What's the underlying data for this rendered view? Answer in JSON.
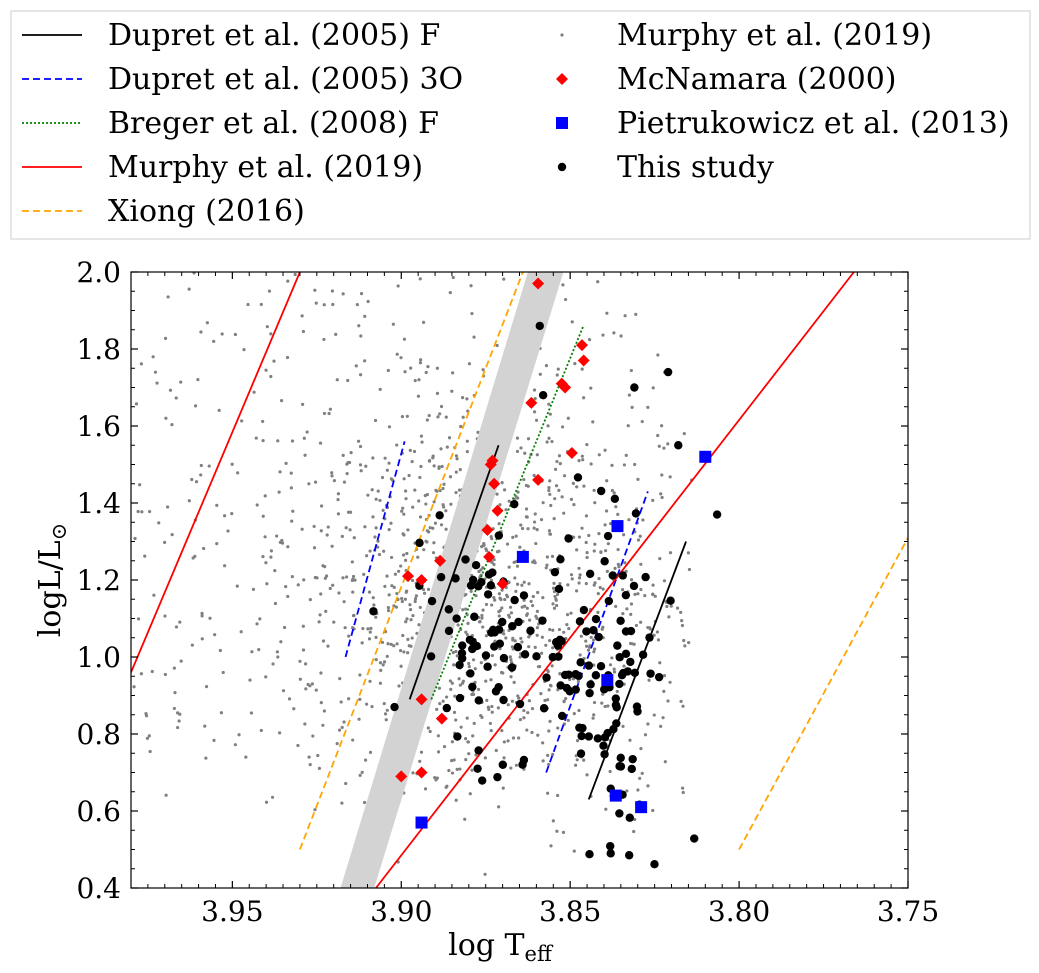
{
  "chart_data": {
    "type": "scatter",
    "title": "",
    "xlabel": "log T",
    "xlabel_sub": "eff",
    "ylabel": "logL/L",
    "ylabel_sub": "⊙",
    "xlim": [
      3.98,
      3.75
    ],
    "ylim": [
      0.4,
      2.0
    ],
    "x_ticks": [
      3.95,
      3.9,
      3.85,
      3.8,
      3.75
    ],
    "x_tick_labels": [
      "3.95",
      "3.90",
      "3.85",
      "3.80",
      "3.75"
    ],
    "y_ticks": [
      0.4,
      0.6,
      0.8,
      1.0,
      1.2,
      1.4,
      1.6,
      1.8,
      2.0
    ],
    "y_tick_labels": [
      "0.4",
      "0.6",
      "0.8",
      "1.0",
      "1.2",
      "1.4",
      "1.6",
      "1.8",
      "2.0"
    ],
    "legend_position": "top-outside",
    "instability_strip_band": {
      "color": "#d3d3d3",
      "polygon": [
        [
          3.918,
          0.4
        ],
        [
          3.908,
          0.4
        ],
        [
          3.852,
          2.0
        ],
        [
          3.8625,
          2.0
        ]
      ]
    },
    "lines": [
      {
        "name": "Dupret et al. (2005) F",
        "color": "#000000",
        "style": "solid",
        "points": [
          [
            3.8975,
            0.89
          ],
          [
            3.8712,
            1.55
          ]
        ]
      },
      {
        "name": "Dupret et al. (2005) F",
        "color": "#000000",
        "style": "solid",
        "points": [
          [
            3.8445,
            0.63
          ],
          [
            3.8157,
            1.3
          ]
        ]
      },
      {
        "name": "Dupret et al. (2005) 3O",
        "color": "#0000ff",
        "style": "dashed",
        "points": [
          [
            3.9165,
            1.0
          ],
          [
            3.899,
            1.56
          ]
        ]
      },
      {
        "name": "Dupret et al. (2005) 3O",
        "color": "#0000ff",
        "style": "dashed",
        "points": [
          [
            3.8571,
            0.7
          ],
          [
            3.827,
            1.43
          ]
        ]
      },
      {
        "name": "Breger et al. (2008) F",
        "color": "#008000",
        "style": "dotted",
        "points": [
          [
            3.8911,
            0.89
          ],
          [
            3.8461,
            1.86
          ]
        ]
      },
      {
        "name": "Murphy et al. (2019)",
        "color": "#ff0000",
        "style": "solid",
        "points": [
          [
            3.98,
            0.96
          ],
          [
            3.93,
            2.0
          ]
        ]
      },
      {
        "name": "Murphy et al. (2019)",
        "color": "#ff0000",
        "style": "solid",
        "points": [
          [
            3.9075,
            0.4
          ],
          [
            3.766,
            2.0
          ]
        ]
      },
      {
        "name": "Xiong (2016)",
        "color": "#ffa500",
        "style": "dashed",
        "points": [
          [
            3.93,
            0.5
          ],
          [
            3.864,
            2.0
          ]
        ]
      },
      {
        "name": "Xiong (2016)",
        "color": "#ffa500",
        "style": "dashed",
        "points": [
          [
            3.8,
            0.5
          ],
          [
            3.75,
            1.31
          ]
        ]
      }
    ],
    "series": [
      {
        "name": "Murphy et al. (2019)",
        "marker": "small-dot",
        "color": "#808080",
        "generated_count": 1400,
        "distribution": "dense cloud roughly x 3.98–3.81, y 0.45–2.0, centred near (3.875, 1.15)"
      },
      {
        "name": "McNamara (2000)",
        "marker": "diamond",
        "color": "#ff0000",
        "points": [
          [
            3.8595,
            1.97
          ],
          [
            3.8465,
            1.81
          ],
          [
            3.846,
            1.77
          ],
          [
            3.8525,
            1.71
          ],
          [
            3.8515,
            1.7
          ],
          [
            3.8615,
            1.66
          ],
          [
            3.873,
            1.51
          ],
          [
            3.8735,
            1.5
          ],
          [
            3.8495,
            1.53
          ],
          [
            3.8725,
            1.45
          ],
          [
            3.8595,
            1.46
          ],
          [
            3.8715,
            1.38
          ],
          [
            3.8745,
            1.33
          ],
          [
            3.874,
            1.26
          ],
          [
            3.8885,
            1.25
          ],
          [
            3.894,
            1.2
          ],
          [
            3.898,
            1.21
          ],
          [
            3.87,
            1.19
          ],
          [
            3.894,
            0.89
          ],
          [
            3.888,
            0.84
          ],
          [
            3.9,
            0.69
          ],
          [
            3.894,
            0.7
          ]
        ]
      },
      {
        "name": "Pietrukowicz et al. (2013)",
        "marker": "square",
        "color": "#0000ff",
        "points": [
          [
            3.864,
            1.26
          ],
          [
            3.836,
            1.34
          ],
          [
            3.81,
            1.52
          ],
          [
            3.839,
            0.94
          ],
          [
            3.8365,
            0.64
          ],
          [
            3.829,
            0.61
          ],
          [
            3.894,
            0.57
          ]
        ]
      },
      {
        "name": "This study",
        "marker": "circle",
        "color": "#000000",
        "generated_count": 170,
        "distribution": "clusters near x 3.90–3.86 (y 0.85–1.6) and x 3.85–3.82 (y 0.5–1.45), plus sparse points up to y 1.86",
        "extra_points": [
          [
            3.859,
            1.86
          ],
          [
            3.821,
            1.74
          ],
          [
            3.8065,
            1.37
          ],
          [
            3.818,
            1.55
          ],
          [
            3.831,
            1.7
          ],
          [
            3.838,
            0.49
          ],
          [
            3.902,
            0.87
          ],
          [
            3.858,
            1.68
          ]
        ]
      }
    ],
    "legend": [
      {
        "label": "Dupret et al. (2005) F",
        "kind": "line",
        "color": "#000000",
        "style": "solid"
      },
      {
        "label": "Dupret et al. (2005) 3O",
        "kind": "line",
        "color": "#0000ff",
        "style": "dashed"
      },
      {
        "label": "Breger et al. (2008) F",
        "kind": "line",
        "color": "#008000",
        "style": "dotted"
      },
      {
        "label": "Murphy et al. (2019)",
        "kind": "line",
        "color": "#ff0000",
        "style": "solid"
      },
      {
        "label": "Xiong (2016)",
        "kind": "line",
        "color": "#ffa500",
        "style": "dashed"
      },
      {
        "label": "Murphy et al. (2019)",
        "kind": "small-dot",
        "color": "#808080"
      },
      {
        "label": "McNamara (2000)",
        "kind": "diamond",
        "color": "#ff0000"
      },
      {
        "label": "Pietrukowicz et al. (2013)",
        "kind": "square",
        "color": "#0000ff"
      },
      {
        "label": "This study",
        "kind": "circle",
        "color": "#000000"
      }
    ]
  }
}
